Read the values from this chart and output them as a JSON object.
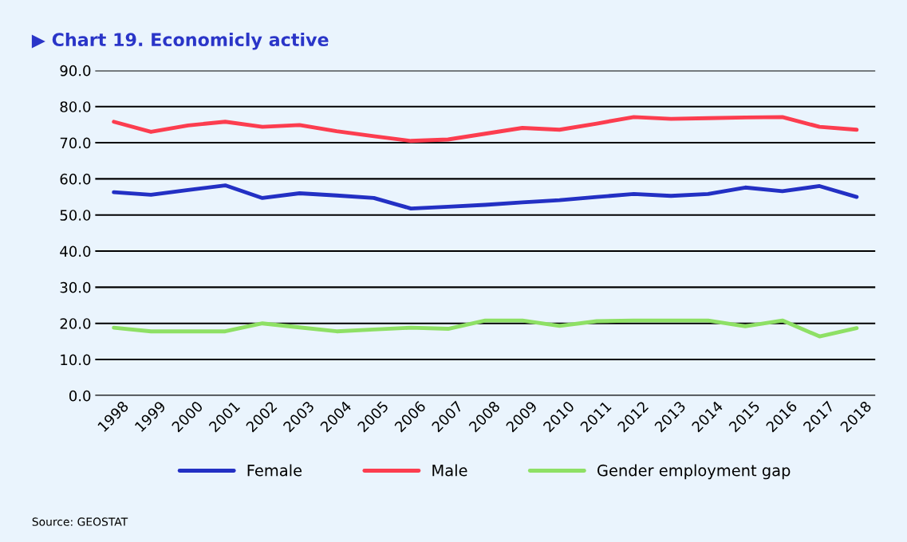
{
  "chart_data": {
    "type": "line",
    "title": "▶ Chart 19. Economicly active",
    "categories": [
      "1998",
      "1999",
      "2000",
      "2001",
      "2002",
      "2003",
      "2004",
      "2005",
      "2006",
      "2007",
      "2008",
      "2009",
      "2010",
      "2011",
      "2012",
      "2013",
      "2014",
      "2015",
      "2016",
      "2017",
      "2018"
    ],
    "series": [
      {
        "name": "Female",
        "color": "#2330c4",
        "values": [
          56.3,
          55.6,
          56.9,
          58.2,
          54.7,
          56.0,
          55.4,
          54.7,
          51.8,
          52.3,
          52.8,
          53.5,
          54.1,
          55.0,
          55.8,
          55.3,
          55.8,
          57.6,
          56.6,
          58.0,
          55.0
        ]
      },
      {
        "name": "Male",
        "color": "#fc3d4f",
        "values": [
          75.8,
          73.0,
          74.8,
          75.8,
          74.4,
          74.9,
          73.2,
          71.8,
          70.5,
          70.9,
          72.5,
          74.1,
          73.6,
          75.3,
          77.1,
          76.6,
          76.8,
          77.0,
          77.1,
          74.4,
          73.6
        ]
      },
      {
        "name": "Gender employment gap",
        "color": "#8ee065",
        "values": [
          18.8,
          17.8,
          17.8,
          17.8,
          20.0,
          18.9,
          17.8,
          18.3,
          18.8,
          18.5,
          20.8,
          20.8,
          19.3,
          20.6,
          20.8,
          20.8,
          20.8,
          19.2,
          20.8,
          16.4,
          18.7
        ]
      }
    ],
    "ylim": [
      0,
      90
    ],
    "yticks": [
      {
        "value": 0,
        "label": "0.0"
      },
      {
        "value": 10,
        "label": "10.0"
      },
      {
        "value": 20,
        "label": "20.0"
      },
      {
        "value": 30,
        "label": "30.0"
      },
      {
        "value": 40,
        "label": "40.0"
      },
      {
        "value": 50,
        "label": "50.0"
      },
      {
        "value": 60,
        "label": "60.0"
      },
      {
        "value": 70,
        "label": "70.0"
      },
      {
        "value": 80,
        "label": "80.0"
      },
      {
        "value": 90,
        "label": "90.0"
      }
    ],
    "grid": "y",
    "legend": "bottom",
    "marker": "none",
    "line_style": "solid",
    "annotations": [
      "Source: GEOSTAT"
    ]
  }
}
